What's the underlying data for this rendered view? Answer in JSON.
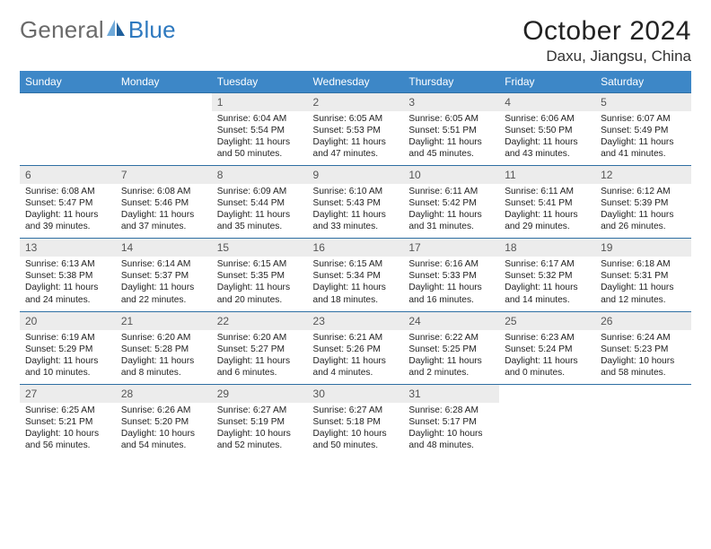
{
  "brand": {
    "part1": "General",
    "part2": "Blue"
  },
  "title": {
    "month": "October 2024",
    "location": "Daxu, Jiangsu, China"
  },
  "colors": {
    "header_bg": "#3d87c7",
    "row_border": "#2f6fa3",
    "daynum_bg": "#ececec",
    "brand_blue": "#2e79bf"
  },
  "weekdays": [
    "Sunday",
    "Monday",
    "Tuesday",
    "Wednesday",
    "Thursday",
    "Friday",
    "Saturday"
  ],
  "grid": [
    [
      null,
      null,
      {
        "n": "1",
        "sr": "6:04 AM",
        "ss": "5:54 PM",
        "dl": "11 hours and 50 minutes."
      },
      {
        "n": "2",
        "sr": "6:05 AM",
        "ss": "5:53 PM",
        "dl": "11 hours and 47 minutes."
      },
      {
        "n": "3",
        "sr": "6:05 AM",
        "ss": "5:51 PM",
        "dl": "11 hours and 45 minutes."
      },
      {
        "n": "4",
        "sr": "6:06 AM",
        "ss": "5:50 PM",
        "dl": "11 hours and 43 minutes."
      },
      {
        "n": "5",
        "sr": "6:07 AM",
        "ss": "5:49 PM",
        "dl": "11 hours and 41 minutes."
      }
    ],
    [
      {
        "n": "6",
        "sr": "6:08 AM",
        "ss": "5:47 PM",
        "dl": "11 hours and 39 minutes."
      },
      {
        "n": "7",
        "sr": "6:08 AM",
        "ss": "5:46 PM",
        "dl": "11 hours and 37 minutes."
      },
      {
        "n": "8",
        "sr": "6:09 AM",
        "ss": "5:44 PM",
        "dl": "11 hours and 35 minutes."
      },
      {
        "n": "9",
        "sr": "6:10 AM",
        "ss": "5:43 PM",
        "dl": "11 hours and 33 minutes."
      },
      {
        "n": "10",
        "sr": "6:11 AM",
        "ss": "5:42 PM",
        "dl": "11 hours and 31 minutes."
      },
      {
        "n": "11",
        "sr": "6:11 AM",
        "ss": "5:41 PM",
        "dl": "11 hours and 29 minutes."
      },
      {
        "n": "12",
        "sr": "6:12 AM",
        "ss": "5:39 PM",
        "dl": "11 hours and 26 minutes."
      }
    ],
    [
      {
        "n": "13",
        "sr": "6:13 AM",
        "ss": "5:38 PM",
        "dl": "11 hours and 24 minutes."
      },
      {
        "n": "14",
        "sr": "6:14 AM",
        "ss": "5:37 PM",
        "dl": "11 hours and 22 minutes."
      },
      {
        "n": "15",
        "sr": "6:15 AM",
        "ss": "5:35 PM",
        "dl": "11 hours and 20 minutes."
      },
      {
        "n": "16",
        "sr": "6:15 AM",
        "ss": "5:34 PM",
        "dl": "11 hours and 18 minutes."
      },
      {
        "n": "17",
        "sr": "6:16 AM",
        "ss": "5:33 PM",
        "dl": "11 hours and 16 minutes."
      },
      {
        "n": "18",
        "sr": "6:17 AM",
        "ss": "5:32 PM",
        "dl": "11 hours and 14 minutes."
      },
      {
        "n": "19",
        "sr": "6:18 AM",
        "ss": "5:31 PM",
        "dl": "11 hours and 12 minutes."
      }
    ],
    [
      {
        "n": "20",
        "sr": "6:19 AM",
        "ss": "5:29 PM",
        "dl": "11 hours and 10 minutes."
      },
      {
        "n": "21",
        "sr": "6:20 AM",
        "ss": "5:28 PM",
        "dl": "11 hours and 8 minutes."
      },
      {
        "n": "22",
        "sr": "6:20 AM",
        "ss": "5:27 PM",
        "dl": "11 hours and 6 minutes."
      },
      {
        "n": "23",
        "sr": "6:21 AM",
        "ss": "5:26 PM",
        "dl": "11 hours and 4 minutes."
      },
      {
        "n": "24",
        "sr": "6:22 AM",
        "ss": "5:25 PM",
        "dl": "11 hours and 2 minutes."
      },
      {
        "n": "25",
        "sr": "6:23 AM",
        "ss": "5:24 PM",
        "dl": "11 hours and 0 minutes."
      },
      {
        "n": "26",
        "sr": "6:24 AM",
        "ss": "5:23 PM",
        "dl": "10 hours and 58 minutes."
      }
    ],
    [
      {
        "n": "27",
        "sr": "6:25 AM",
        "ss": "5:21 PM",
        "dl": "10 hours and 56 minutes."
      },
      {
        "n": "28",
        "sr": "6:26 AM",
        "ss": "5:20 PM",
        "dl": "10 hours and 54 minutes."
      },
      {
        "n": "29",
        "sr": "6:27 AM",
        "ss": "5:19 PM",
        "dl": "10 hours and 52 minutes."
      },
      {
        "n": "30",
        "sr": "6:27 AM",
        "ss": "5:18 PM",
        "dl": "10 hours and 50 minutes."
      },
      {
        "n": "31",
        "sr": "6:28 AM",
        "ss": "5:17 PM",
        "dl": "10 hours and 48 minutes."
      },
      null,
      null
    ]
  ],
  "labels": {
    "sunrise": "Sunrise:",
    "sunset": "Sunset:",
    "daylight": "Daylight:"
  }
}
